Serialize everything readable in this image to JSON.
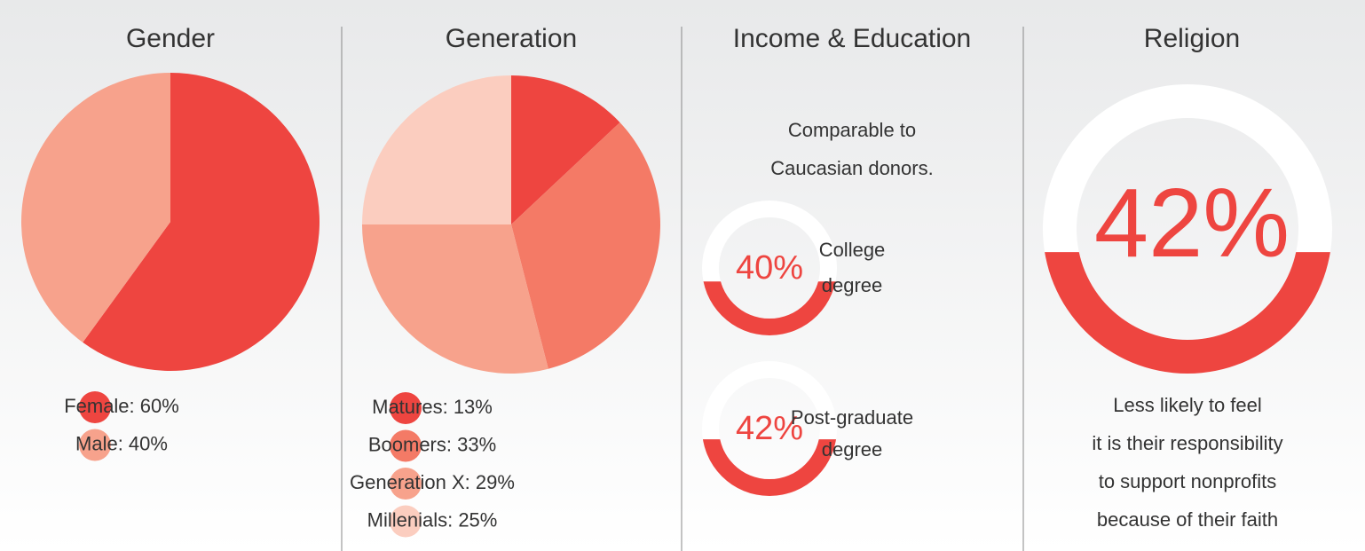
{
  "chart_data": [
    {
      "type": "pie",
      "title": "Gender",
      "categories": [
        "Female: 60%",
        "Male: 40%"
      ],
      "values": [
        60,
        40
      ],
      "colors": [
        "#ee4540",
        "#f7a28c"
      ]
    },
    {
      "type": "pie",
      "title": "Generation",
      "categories": [
        "Matures: 13%",
        "Boomers: 33%",
        "Generation X: 29%",
        "Millenials: 25%"
      ],
      "values": [
        13,
        33,
        29,
        25
      ],
      "colors": [
        "#ee4540",
        "#f47a66",
        "#f7a28c",
        "#fbcdbf"
      ]
    },
    {
      "type": "gauge",
      "title": "Income & Education",
      "subtitle": [
        "Comparable to",
        "Caucasian donors."
      ],
      "categories": [
        [
          "College",
          "degree"
        ],
        [
          "Post-graduate",
          "degree"
        ]
      ],
      "values": [
        40,
        42
      ],
      "value_labels": [
        "40%",
        "42%"
      ],
      "color": "#ee4540",
      "track_color": "#ffffff"
    },
    {
      "type": "gauge",
      "title": "Religion",
      "values": [
        42
      ],
      "value_labels": [
        "42%"
      ],
      "note": [
        "Less likely to feel",
        "it is their responsibility",
        "to support nonprofits",
        "because of their faith"
      ],
      "color": "#ee4540",
      "track_color": "#ffffff"
    }
  ]
}
